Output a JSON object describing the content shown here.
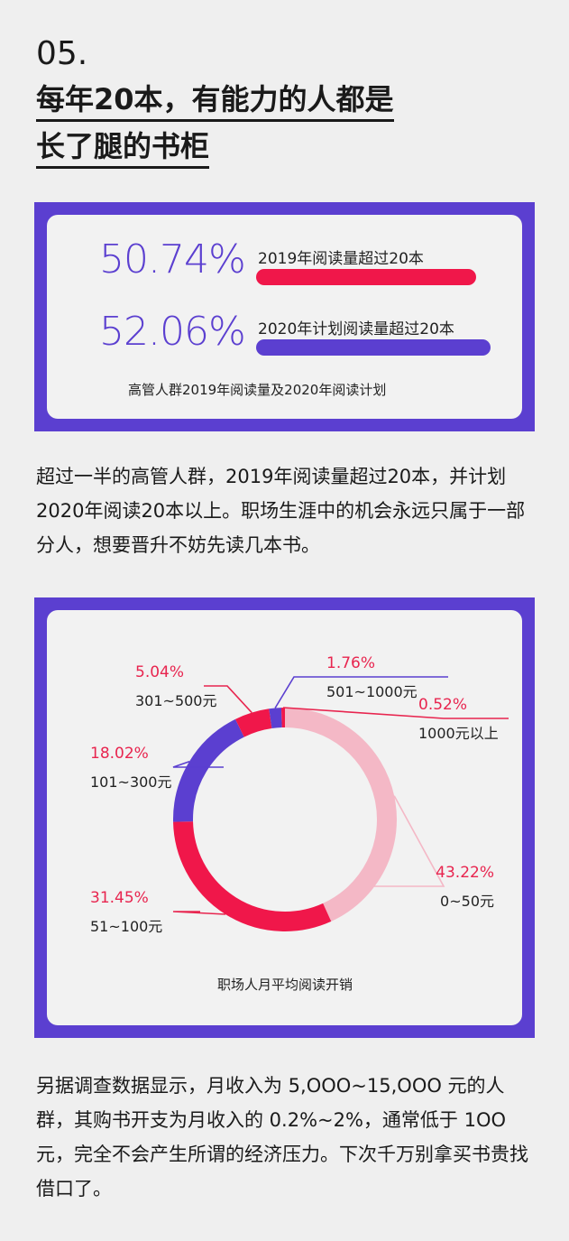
{
  "section": {
    "number": "05.",
    "title_line1": "每年20本，有能力的人都是",
    "title_line2": "长了腿的书柜"
  },
  "reading_card": {
    "items": [
      {
        "percent": "50.74%",
        "label": "2019年阅读量超过20本",
        "bar_color": "#f0174a"
      },
      {
        "percent": "52.06%",
        "label": "2020年计划阅读量超过20本",
        "bar_color": "#5b3fd0"
      }
    ],
    "caption": "高管人群2019年阅读量及2020年阅读计划"
  },
  "paragraph1": "超过一半的高管人群，2019年阅读量超过20本，并计划2020年阅读20本以上。职场生涯中的机会永远只属于一部分人，想要晋升不妨先读几本书。",
  "chart_data": {
    "type": "pie",
    "title": "职场人月平均阅读开销",
    "slices": [
      {
        "label": "0~50元",
        "value": 43.22,
        "percent_text": "43.22%",
        "color": "#f4b8c6"
      },
      {
        "label": "51~100元",
        "value": 31.45,
        "percent_text": "31.45%",
        "color": "#f0174a"
      },
      {
        "label": "101~300元",
        "value": 18.02,
        "percent_text": "18.02%",
        "color": "#5b3fd0"
      },
      {
        "label": "301~500元",
        "value": 5.04,
        "percent_text": "5.04%",
        "color": "#f0174a"
      },
      {
        "label": "501~1000元",
        "value": 1.76,
        "percent_text": "1.76%",
        "color": "#5b3fd0"
      },
      {
        "label": "1000元以上",
        "value": 0.52,
        "percent_text": "0.52%",
        "color": "#f0174a"
      }
    ],
    "label_color_percent": "#e8254f",
    "leader_colors": {
      "pink": "#f4b8c6",
      "red": "#e8254f",
      "purple": "#5b3fd0"
    }
  },
  "paragraph2": "另据调查数据显示，月收入为 5,OOO~15,OOO 元的人群，其购书开支为月收入的 0.2%~2%，通常低于 1OO 元，完全不会产生所谓的经济压力。下次千万别拿买书贵找借口了。",
  "colors": {
    "purple": "#5b3fd0",
    "red": "#f0174a",
    "pink": "#f4b8c6",
    "background": "#efefef"
  }
}
